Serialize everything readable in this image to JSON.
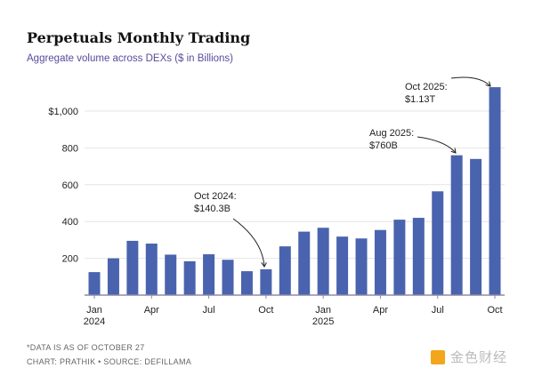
{
  "chart_data": {
    "type": "bar",
    "title": "Perpetuals Monthly Trading",
    "subtitle": "Aggregate volume across DEXs ($ in Billions)",
    "xlabel": "",
    "ylabel": "",
    "ylim": [
      0,
      1130
    ],
    "yticks": [
      200,
      400,
      600,
      800,
      1000
    ],
    "ytick_labels": [
      "200",
      "400",
      "600",
      "800",
      "$1,000"
    ],
    "grid": true,
    "categories": [
      "Jan 2024",
      "Feb 2024",
      "Mar 2024",
      "Apr 2024",
      "May 2024",
      "Jun 2024",
      "Jul 2024",
      "Aug 2024",
      "Sep 2024",
      "Oct 2024",
      "Nov 2024",
      "Dec 2024",
      "Jan 2025",
      "Feb 2025",
      "Mar 2025",
      "Apr 2025",
      "May 2025",
      "Jun 2025",
      "Jul 2025",
      "Aug 2025",
      "Sep 2025",
      "Oct 2025"
    ],
    "values": [
      125,
      200,
      295,
      280,
      220,
      184,
      222,
      192,
      130,
      140.3,
      265,
      345,
      366,
      318,
      308,
      354,
      410,
      420,
      564,
      760,
      740,
      1130
    ],
    "xtick_labels": [
      {
        "index": 0,
        "label": "Jan",
        "sub": "2024"
      },
      {
        "index": 3,
        "label": "Apr"
      },
      {
        "index": 6,
        "label": "Jul"
      },
      {
        "index": 9,
        "label": "Oct"
      },
      {
        "index": 12,
        "label": "Jan",
        "sub": "2025"
      },
      {
        "index": 15,
        "label": "Apr"
      },
      {
        "index": 18,
        "label": "Jul"
      },
      {
        "index": 21,
        "label": "Oct"
      }
    ],
    "annotations": [
      {
        "index": 9,
        "line1": "Oct 2024:",
        "line2": "$140.3B"
      },
      {
        "index": 19,
        "line1": "Aug 2025:",
        "line2": "$760B"
      },
      {
        "index": 21,
        "line1": "Oct 2025:",
        "line2": "$1.13T"
      }
    ],
    "bar_color": "#4a63ae"
  },
  "footer": {
    "note": "*DATA IS AS OF OCTOBER 27",
    "credit": "CHART: PRATHIK • SOURCE: DEFILLAMA"
  },
  "watermark": "金色财经"
}
